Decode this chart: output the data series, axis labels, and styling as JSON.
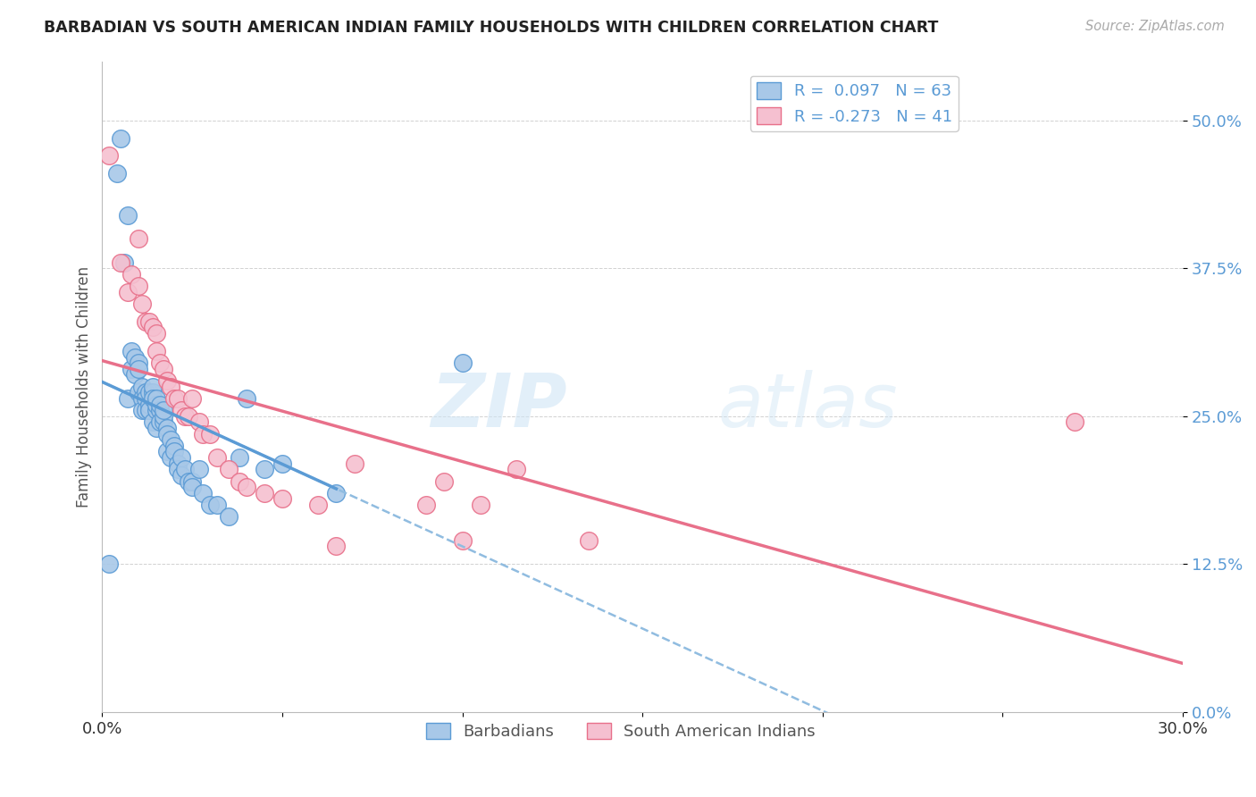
{
  "title": "BARBADIAN VS SOUTH AMERICAN INDIAN FAMILY HOUSEHOLDS WITH CHILDREN CORRELATION CHART",
  "source": "Source: ZipAtlas.com",
  "xlabel": "",
  "ylabel": "Family Households with Children",
  "legend_labels": [
    "Barbadians",
    "South American Indians"
  ],
  "r_barbadian": 0.097,
  "n_barbadian": 63,
  "r_south_american": -0.273,
  "n_south_american": 41,
  "xmin": 0.0,
  "xmax": 0.3,
  "ymin": 0.0,
  "ymax": 0.55,
  "yticks": [
    0.0,
    0.125,
    0.25,
    0.375,
    0.5
  ],
  "ytick_labels": [
    "0.0%",
    "12.5%",
    "25.0%",
    "37.5%",
    "50.0%"
  ],
  "xticks": [
    0.0,
    0.05,
    0.1,
    0.15,
    0.2,
    0.25,
    0.3
  ],
  "xtick_labels": [
    "0.0%",
    "",
    "",
    "",
    "",
    "",
    "30.0%"
  ],
  "color_barbadian": "#a8c8e8",
  "color_south_american": "#f5c0d0",
  "line_color_barbadian": "#5b9bd5",
  "line_color_south_american": "#e8708a",
  "line_color_barbadian_dashed": "#90bce0",
  "watermark_zip": "ZIP",
  "watermark_atlas": "atlas",
  "barbadian_x": [
    0.002,
    0.004,
    0.005,
    0.006,
    0.007,
    0.007,
    0.008,
    0.008,
    0.009,
    0.009,
    0.01,
    0.01,
    0.01,
    0.011,
    0.011,
    0.011,
    0.012,
    0.012,
    0.012,
    0.013,
    0.013,
    0.013,
    0.013,
    0.014,
    0.014,
    0.014,
    0.014,
    0.015,
    0.015,
    0.015,
    0.015,
    0.016,
    0.016,
    0.016,
    0.017,
    0.017,
    0.017,
    0.018,
    0.018,
    0.018,
    0.019,
    0.019,
    0.02,
    0.02,
    0.021,
    0.021,
    0.022,
    0.022,
    0.023,
    0.024,
    0.025,
    0.025,
    0.027,
    0.028,
    0.03,
    0.032,
    0.035,
    0.038,
    0.04,
    0.045,
    0.05,
    0.065,
    0.1
  ],
  "barbadian_y": [
    0.125,
    0.455,
    0.485,
    0.38,
    0.265,
    0.42,
    0.29,
    0.305,
    0.285,
    0.3,
    0.295,
    0.29,
    0.27,
    0.275,
    0.265,
    0.255,
    0.27,
    0.265,
    0.255,
    0.255,
    0.26,
    0.27,
    0.255,
    0.27,
    0.275,
    0.265,
    0.245,
    0.24,
    0.255,
    0.26,
    0.265,
    0.255,
    0.245,
    0.26,
    0.245,
    0.25,
    0.255,
    0.24,
    0.235,
    0.22,
    0.215,
    0.23,
    0.225,
    0.22,
    0.21,
    0.205,
    0.2,
    0.215,
    0.205,
    0.195,
    0.195,
    0.19,
    0.205,
    0.185,
    0.175,
    0.175,
    0.165,
    0.215,
    0.265,
    0.205,
    0.21,
    0.185,
    0.295
  ],
  "south_american_x": [
    0.002,
    0.005,
    0.007,
    0.008,
    0.01,
    0.01,
    0.011,
    0.012,
    0.013,
    0.014,
    0.015,
    0.015,
    0.016,
    0.017,
    0.018,
    0.019,
    0.02,
    0.021,
    0.022,
    0.023,
    0.024,
    0.025,
    0.027,
    0.028,
    0.03,
    0.032,
    0.035,
    0.038,
    0.04,
    0.045,
    0.05,
    0.06,
    0.065,
    0.07,
    0.09,
    0.095,
    0.1,
    0.105,
    0.115,
    0.135,
    0.27
  ],
  "south_american_y": [
    0.47,
    0.38,
    0.355,
    0.37,
    0.4,
    0.36,
    0.345,
    0.33,
    0.33,
    0.325,
    0.305,
    0.32,
    0.295,
    0.29,
    0.28,
    0.275,
    0.265,
    0.265,
    0.255,
    0.25,
    0.25,
    0.265,
    0.245,
    0.235,
    0.235,
    0.215,
    0.205,
    0.195,
    0.19,
    0.185,
    0.18,
    0.175,
    0.14,
    0.21,
    0.175,
    0.195,
    0.145,
    0.175,
    0.205,
    0.145,
    0.245
  ]
}
